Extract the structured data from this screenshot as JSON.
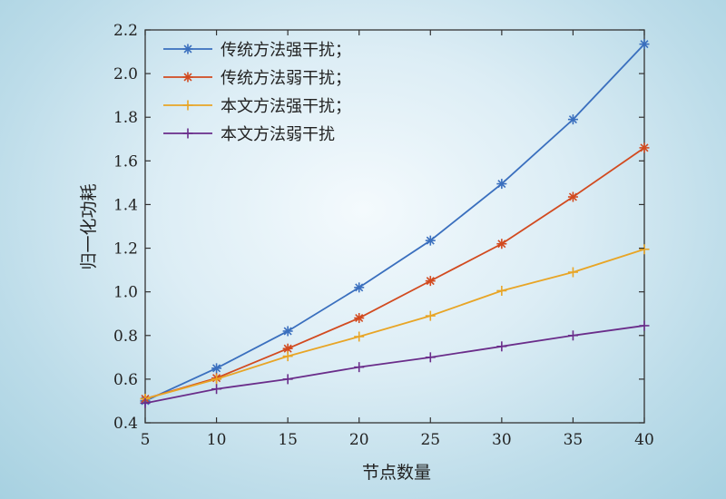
{
  "chart_data": {
    "type": "line",
    "title": "",
    "xlabel": "节点数量",
    "ylabel": "归一化功耗",
    "x": [
      5,
      10,
      15,
      20,
      25,
      30,
      35,
      40
    ],
    "xlim": [
      5,
      40
    ],
    "ylim": [
      0.4,
      2.2
    ],
    "xticks": [
      5,
      10,
      15,
      20,
      25,
      30,
      35,
      40
    ],
    "yticks": [
      0.4,
      0.6,
      0.8,
      1.0,
      1.2,
      1.4,
      1.6,
      1.8,
      2.0,
      2.2
    ],
    "ytick_labels": [
      "0.4",
      "0.6",
      "0.8",
      "1.0",
      "1.2",
      "1.4",
      "1.6",
      "1.8",
      "2.0",
      "2.2"
    ],
    "grid": false,
    "legend_position": "top-left",
    "series": [
      {
        "name": "传统方法强干扰；",
        "color": "#3a6fbe",
        "marker": "asterisk",
        "values": [
          0.5,
          0.65,
          0.82,
          1.02,
          1.235,
          1.495,
          1.79,
          2.135
        ]
      },
      {
        "name": "传统方法弱干扰；",
        "color": "#d24a1f",
        "marker": "asterisk",
        "values": [
          0.51,
          0.605,
          0.74,
          0.88,
          1.05,
          1.22,
          1.435,
          1.66
        ]
      },
      {
        "name": "本文方法强干扰；",
        "color": "#e8a526",
        "marker": "plus",
        "values": [
          0.51,
          0.6,
          0.705,
          0.795,
          0.89,
          1.005,
          1.09,
          1.195
        ]
      },
      {
        "name": "本文方法弱干扰",
        "color": "#6a2d8a",
        "marker": "plus",
        "values": [
          0.49,
          0.555,
          0.6,
          0.655,
          0.7,
          0.75,
          0.8,
          0.845
        ]
      }
    ]
  }
}
